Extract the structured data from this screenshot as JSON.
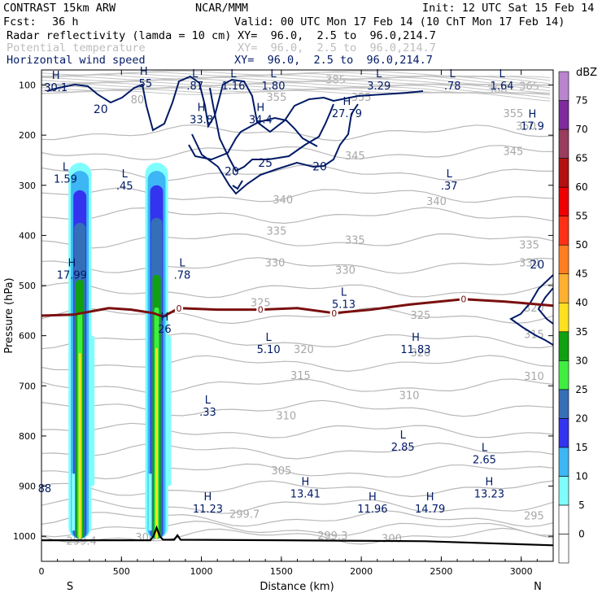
{
  "header": {
    "model": "CONTRAST 15km ARW",
    "org": "NCAR/MMM",
    "init": "Init: 12 UTC Sat 15 Feb 14",
    "fcst_label": "Fcst:",
    "fcst_value": "36 h",
    "valid": "Valid: 00 UTC Mon 17 Feb 14 (10 ChT Mon 17 Feb 14)",
    "fields": [
      {
        "name": "Radar reflectivity (lamda = 10 cm)",
        "xy": "XY=  96.0,  2.5 to  96.0,214.7"
      },
      {
        "name": "Potential temperature",
        "xy": "XY=  96.0,  2.5 to  96.0,214.7"
      },
      {
        "name": "Horizontal wind speed",
        "xy": "XY=  96.0,  2.5 to  96.0,214.7"
      }
    ]
  },
  "chart_data": {
    "type": "cross-section",
    "xlabel": "Distance (km)",
    "ylabel": "Pressure (hPa)",
    "xlim": [
      0,
      3200
    ],
    "ylim": [
      1050,
      70
    ],
    "x_ticks": [
      0,
      500,
      1000,
      1500,
      2000,
      2500,
      3000
    ],
    "y_ticks": [
      100,
      200,
      300,
      400,
      500,
      600,
      700,
      800,
      900,
      1000
    ],
    "x_ends": {
      "left": "S",
      "right": "N"
    },
    "colorbar": {
      "unit": "dBZ",
      "levels": [
        0,
        5,
        10,
        15,
        20,
        25,
        30,
        35,
        40,
        45,
        50,
        55,
        60,
        65,
        70,
        75
      ],
      "colors": [
        "#ffffff",
        "#7ffdfd",
        "#3cb6f5",
        "#3333f0",
        "#356fb8",
        "#40ee40",
        "#10a010",
        "#ffe020",
        "#ffb030",
        "#ff7d20",
        "#ff3014",
        "#ee0000",
        "#b31010",
        "#993c5d",
        "#7f2a9f",
        "#b985cf"
      ]
    },
    "reflectivity_columns": [
      {
        "x": 240,
        "p_top": 255,
        "core_top": 310,
        "p_bottom": 1005
      },
      {
        "x": 720,
        "p_top": 255,
        "core_top": 300,
        "p_bottom": 1005
      }
    ],
    "theta_labels": [
      {
        "x": 1840,
        "p": 90,
        "v": "385"
      },
      {
        "x": 2850,
        "p": 110,
        "v": "360"
      },
      {
        "x": 3050,
        "p": 103,
        "v": "365"
      },
      {
        "x": 1470,
        "p": 125,
        "v": "355"
      },
      {
        "x": 2000,
        "p": 125,
        "v": "355"
      },
      {
        "x": 2950,
        "p": 158,
        "v": "355"
      },
      {
        "x": 3030,
        "p": 183,
        "v": "350"
      },
      {
        "x": 1960,
        "p": 242,
        "v": "345"
      },
      {
        "x": 2950,
        "p": 233,
        "v": "345"
      },
      {
        "x": 1510,
        "p": 330,
        "v": "340"
      },
      {
        "x": 2470,
        "p": 333,
        "v": "340"
      },
      {
        "x": 1470,
        "p": 392,
        "v": "335"
      },
      {
        "x": 1960,
        "p": 410,
        "v": "335"
      },
      {
        "x": 3050,
        "p": 420,
        "v": "335"
      },
      {
        "x": 1460,
        "p": 455,
        "v": "330"
      },
      {
        "x": 1900,
        "p": 470,
        "v": "330"
      },
      {
        "x": 3050,
        "p": 455,
        "v": "330"
      },
      {
        "x": 1370,
        "p": 535,
        "v": "325"
      },
      {
        "x": 2370,
        "p": 560,
        "v": "325"
      },
      {
        "x": 3080,
        "p": 545,
        "v": "320"
      },
      {
        "x": 1640,
        "p": 628,
        "v": "320"
      },
      {
        "x": 2370,
        "p": 635,
        "v": "320"
      },
      {
        "x": 3080,
        "p": 598,
        "v": "315"
      },
      {
        "x": 1620,
        "p": 680,
        "v": "315"
      },
      {
        "x": 3080,
        "p": 682,
        "v": "310"
      },
      {
        "x": 2300,
        "p": 720,
        "v": "310"
      },
      {
        "x": 1530,
        "p": 760,
        "v": "310"
      },
      {
        "x": 1500,
        "p": 870,
        "v": "305"
      },
      {
        "x": 1270,
        "p": 957,
        "v": "299.7"
      },
      {
        "x": 1820,
        "p": 1000,
        "v": "299.3"
      },
      {
        "x": 2190,
        "p": 1005,
        "v": "300"
      },
      {
        "x": 3080,
        "p": 960,
        "v": "295"
      },
      {
        "x": 250,
        "p": 1010,
        "v": "299.4"
      },
      {
        "x": 650,
        "p": 1003,
        "v": "300"
      },
      {
        "x": 600,
        "p": 130,
        "v": "80"
      }
    ],
    "wind_labels": [
      {
        "x": 370,
        "p": 148,
        "v": "20"
      },
      {
        "x": 1190,
        "p": 272,
        "v": "20"
      },
      {
        "x": 1400,
        "p": 255,
        "v": "25"
      },
      {
        "x": 1740,
        "p": 262,
        "v": "20"
      },
      {
        "x": 3100,
        "p": 458,
        "v": "20"
      }
    ],
    "zero_isotherm_label": "0",
    "zero_isotherm_marks": [
      {
        "x": 860,
        "p": 545
      },
      {
        "x": 1370,
        "p": 548
      },
      {
        "x": 1830,
        "p": 555
      },
      {
        "x": 2640,
        "p": 527
      }
    ],
    "hl_markers": [
      {
        "x": 90,
        "p": 88,
        "t": "H",
        "v": "30.1"
      },
      {
        "x": 640,
        "p": 80,
        "t": "H",
        "v": ".55"
      },
      {
        "x": 960,
        "p": 85,
        "t": "L",
        "v": ".87"
      },
      {
        "x": 1200,
        "p": 85,
        "t": "L",
        "v": "1.16"
      },
      {
        "x": 1450,
        "p": 85,
        "t": "L",
        "v": "1.80"
      },
      {
        "x": 2110,
        "p": 85,
        "t": "L",
        "v": "3.29"
      },
      {
        "x": 2570,
        "p": 85,
        "t": "L",
        "v": ".78"
      },
      {
        "x": 2880,
        "p": 85,
        "t": "L",
        "v": "1.64"
      },
      {
        "x": 1000,
        "p": 152,
        "t": "H",
        "v": "33.8"
      },
      {
        "x": 1370,
        "p": 152,
        "t": "H",
        "v": "34.4"
      },
      {
        "x": 1910,
        "p": 140,
        "t": "H",
        "v": "27.79"
      },
      {
        "x": 3070,
        "p": 165,
        "t": "H",
        "v": "17.9"
      },
      {
        "x": 150,
        "p": 270,
        "t": "L",
        "v": "1.59"
      },
      {
        "x": 520,
        "p": 284,
        "t": "L",
        "v": ".45"
      },
      {
        "x": 2550,
        "p": 284,
        "t": "L",
        "v": ".37"
      },
      {
        "x": 190,
        "p": 462,
        "t": "H",
        "v": "17.99"
      },
      {
        "x": 880,
        "p": 462,
        "t": "L",
        "v": ".78"
      },
      {
        "x": 1890,
        "p": 520,
        "t": "L",
        "v": "5.13"
      },
      {
        "x": 770,
        "p": 570,
        "t": "H",
        "v": "26"
      },
      {
        "x": 1420,
        "p": 610,
        "t": "L",
        "v": "5.10"
      },
      {
        "x": 2340,
        "p": 610,
        "t": "H",
        "v": "11.83"
      },
      {
        "x": 1040,
        "p": 735,
        "t": "L",
        "v": ".33"
      },
      {
        "x": 2260,
        "p": 805,
        "t": "L",
        "v": "2.85"
      },
      {
        "x": 2770,
        "p": 830,
        "t": "L",
        "v": "2.65"
      },
      {
        "x": 1650,
        "p": 898,
        "t": "H",
        "v": "13.41"
      },
      {
        "x": 1040,
        "p": 928,
        "t": "H",
        "v": "11.23"
      },
      {
        "x": 2070,
        "p": 928,
        "t": "H",
        "v": "11.96"
      },
      {
        "x": 2430,
        "p": 928,
        "t": "H",
        "v": "14.79"
      },
      {
        "x": 2800,
        "p": 898,
        "t": "H",
        "v": "13.23"
      },
      {
        "x": 20,
        "p": 888,
        "t": "",
        "v": "88"
      }
    ],
    "terrain": [
      [
        0,
        1008
      ],
      [
        680,
        1008
      ],
      [
        700,
        1000
      ],
      [
        720,
        983
      ],
      [
        740,
        1000
      ],
      [
        760,
        1007
      ],
      [
        830,
        1007
      ],
      [
        850,
        998
      ],
      [
        870,
        1007
      ],
      [
        1500,
        1008
      ],
      [
        2400,
        1010
      ],
      [
        3200,
        1018
      ]
    ]
  }
}
